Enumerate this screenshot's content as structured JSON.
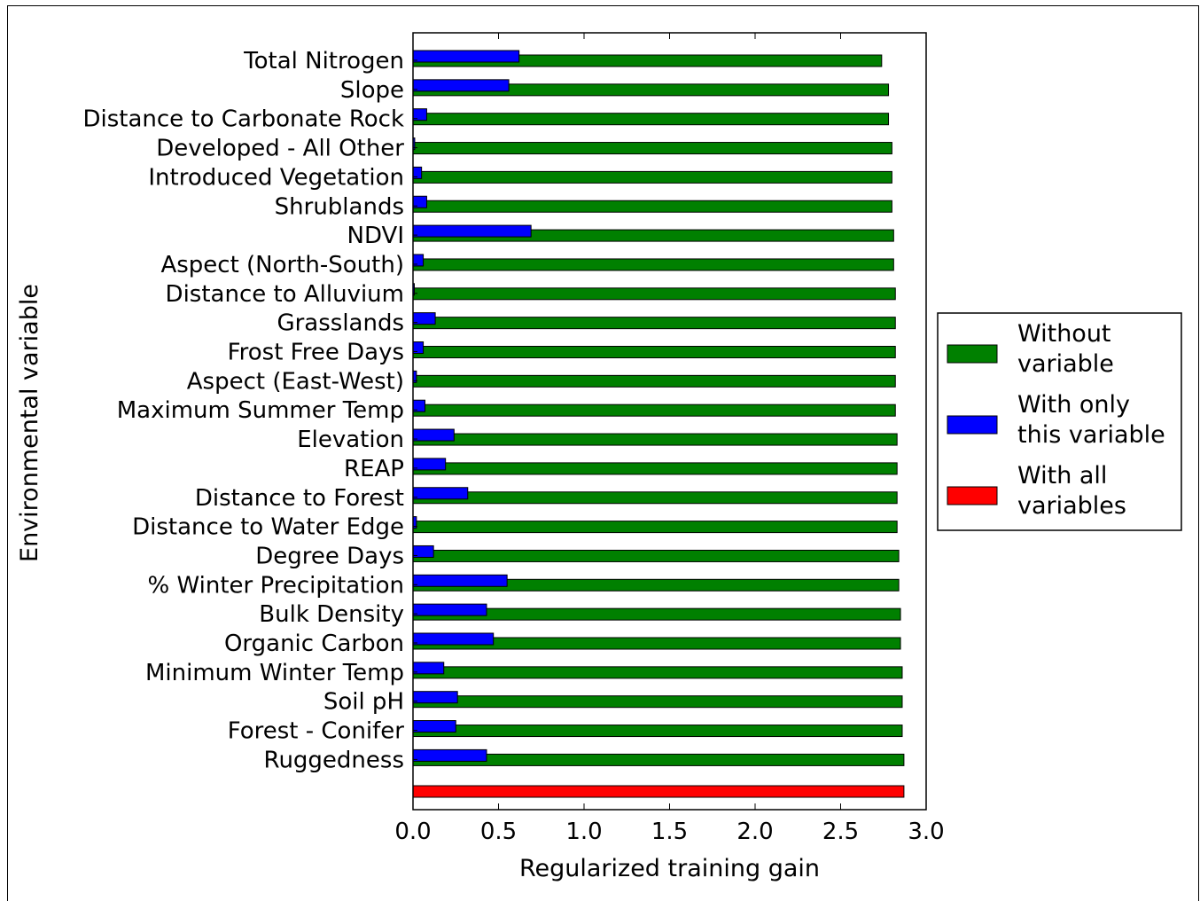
{
  "chart_data": {
    "type": "bar",
    "orientation": "horizontal",
    "xlabel": "Regularized training gain",
    "ylabel": "Environmental variable",
    "xlim": [
      0,
      3.0
    ],
    "xticks": [
      "0.0",
      "0.5",
      "1.0",
      "1.5",
      "2.0",
      "2.5",
      "3.0"
    ],
    "categories": [
      "Total Nitrogen",
      "Slope",
      "Distance to Carbonate Rock",
      "Developed - All Other",
      "Introduced Vegetation",
      "Shrublands",
      "NDVI",
      "Aspect (North-South)",
      "Distance to Alluvium",
      "Grasslands",
      "Frost Free Days",
      "Aspect (East-West)",
      "Maximum Summer Temp",
      "Elevation",
      "REAP",
      "Distance to Forest",
      "Distance to Water Edge",
      "Degree Days",
      "% Winter Precipitation",
      "Bulk Density",
      "Organic Carbon",
      "Minimum Winter Temp",
      "Soil pH",
      "Forest - Conifer",
      "Ruggedness"
    ],
    "series": [
      {
        "name": "Without variable",
        "color": "#008000",
        "values": [
          2.74,
          2.78,
          2.78,
          2.8,
          2.8,
          2.8,
          2.81,
          2.81,
          2.82,
          2.82,
          2.82,
          2.82,
          2.82,
          2.83,
          2.83,
          2.83,
          2.83,
          2.84,
          2.84,
          2.85,
          2.85,
          2.86,
          2.86,
          2.86,
          2.87
        ]
      },
      {
        "name": "With only this variable",
        "color": "#0000ff",
        "values": [
          0.62,
          0.56,
          0.08,
          0.01,
          0.05,
          0.08,
          0.69,
          0.06,
          0.0,
          0.13,
          0.06,
          0.02,
          0.07,
          0.24,
          0.19,
          0.32,
          0.02,
          0.12,
          0.55,
          0.43,
          0.47,
          0.18,
          0.26,
          0.25,
          0.43
        ]
      }
    ],
    "all_variables": {
      "name": "With all variables",
      "color": "#ff0000",
      "value": 2.87
    },
    "legend": {
      "placement": "right",
      "entries": [
        {
          "lines": [
            "Without",
            "variable"
          ],
          "color": "#008000"
        },
        {
          "lines": [
            "With only",
            "this variable"
          ],
          "color": "#0000ff"
        },
        {
          "lines": [
            "With all",
            "variables"
          ],
          "color": "#ff0000"
        }
      ]
    }
  }
}
